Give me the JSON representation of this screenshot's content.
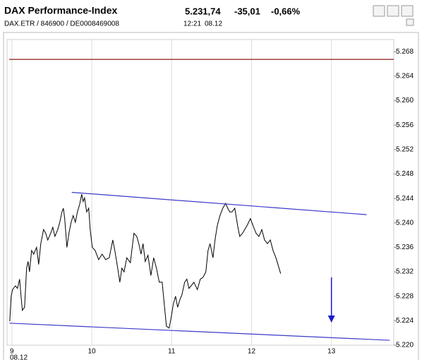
{
  "chart_data": {
    "type": "line",
    "title": "DAX Performance-Index",
    "identifiers": "DAX.ETR / 846900 / DE0008469008",
    "time": "12:21",
    "date": "08.12",
    "quote": {
      "price": {
        "value": 5231.74,
        "label": "5.231,74"
      },
      "change": {
        "value": -35.01,
        "label": "-35,01"
      },
      "change_pct": {
        "value": -0.66,
        "label": "-0,66%"
      }
    },
    "x": [
      8.974,
      8.991,
      9.009,
      9.044,
      9.071,
      9.097,
      9.115,
      9.132,
      9.159,
      9.185,
      9.203,
      9.221,
      9.247,
      9.274,
      9.309,
      9.336,
      9.362,
      9.397,
      9.424,
      9.45,
      9.486,
      9.512,
      9.539,
      9.574,
      9.6,
      9.627,
      9.645,
      9.662,
      9.689,
      9.715,
      9.742,
      9.768,
      9.795,
      9.821,
      9.848,
      9.874,
      9.892,
      9.91,
      9.936,
      9.962,
      9.98,
      10.007,
      10.042,
      10.086,
      10.13,
      10.174,
      10.219,
      10.263,
      10.289,
      10.325,
      10.351,
      10.377,
      10.404,
      10.439,
      10.483,
      10.528,
      10.563,
      10.589,
      10.616,
      10.642,
      10.669,
      10.704,
      10.74,
      10.775,
      10.81,
      10.845,
      10.881,
      10.907,
      10.934,
      10.969,
      10.996,
      11.022,
      11.049,
      11.075,
      11.102,
      11.128,
      11.163,
      11.19,
      11.216,
      11.243,
      11.278,
      11.322,
      11.358,
      11.393,
      11.428,
      11.455,
      11.481,
      11.517,
      11.543,
      11.57,
      11.605,
      11.64,
      11.675,
      11.702,
      11.728,
      11.755,
      11.79,
      11.826,
      11.852,
      11.887,
      11.914,
      11.949,
      11.985,
      12.02,
      12.057,
      12.092,
      12.128,
      12.163,
      12.199,
      12.234,
      12.269,
      12.305,
      12.331,
      12.364
    ],
    "series": [
      {
        "color": "#000000",
        "values": [
          5223.9,
          5228.0,
          5229.1,
          5229.7,
          5229.3,
          5230.8,
          5228.0,
          5225.7,
          5226.2,
          5232.6,
          5233.7,
          5232.0,
          5235.5,
          5234.9,
          5236.0,
          5233.2,
          5236.6,
          5238.9,
          5238.3,
          5237.2,
          5238.3,
          5239.3,
          5237.8,
          5238.9,
          5240.1,
          5241.8,
          5242.4,
          5240.7,
          5236.0,
          5238.3,
          5240.1,
          5241.2,
          5240.1,
          5241.8,
          5243.0,
          5244.7,
          5243.5,
          5244.1,
          5241.8,
          5242.4,
          5238.9,
          5236.0,
          5235.5,
          5234.0,
          5234.9,
          5234.0,
          5234.3,
          5237.2,
          5235.5,
          5232.6,
          5230.3,
          5232.6,
          5232.0,
          5234.3,
          5233.5,
          5238.3,
          5237.8,
          5236.6,
          5234.9,
          5236.6,
          5233.7,
          5234.7,
          5231.4,
          5234.3,
          5232.6,
          5230.3,
          5230.3,
          5226.8,
          5223.1,
          5222.8,
          5224.7,
          5226.8,
          5228.0,
          5226.2,
          5227.4,
          5228.2,
          5230.3,
          5230.8,
          5229.3,
          5229.7,
          5230.3,
          5229.1,
          5230.8,
          5231.1,
          5232.0,
          5235.5,
          5236.6,
          5234.3,
          5237.2,
          5239.5,
          5241.2,
          5242.4,
          5243.2,
          5242.4,
          5241.8,
          5241.8,
          5242.4,
          5239.5,
          5237.8,
          5238.3,
          5238.9,
          5239.7,
          5240.7,
          5239.5,
          5238.3,
          5237.8,
          5238.9,
          5237.2,
          5236.6,
          5237.2,
          5235.5,
          5234.3,
          5233.2,
          5231.7
        ]
      }
    ],
    "xlim": [
      8.94,
      13.78
    ],
    "xticks": [
      9,
      10,
      11,
      12,
      13
    ],
    "ylim": [
      5220,
      5270
    ],
    "yticks": [
      {
        "value": 5220,
        "label": "5.220"
      },
      {
        "value": 5224,
        "label": "5.224"
      },
      {
        "value": 5228,
        "label": "5.228"
      },
      {
        "value": 5232,
        "label": "5.232"
      },
      {
        "value": 5236,
        "label": "5.236"
      },
      {
        "value": 5240,
        "label": "5.240"
      },
      {
        "value": 5244,
        "label": "5.244"
      },
      {
        "value": 5248,
        "label": "5.248"
      },
      {
        "value": 5252,
        "label": "5.252"
      },
      {
        "value": 5256,
        "label": "5.256"
      },
      {
        "value": 5260,
        "label": "5.260"
      },
      {
        "value": 5264,
        "label": "5.264"
      },
      {
        "value": 5268,
        "label": "5.268"
      }
    ],
    "grid": true,
    "reference_lines": [
      {
        "value": 5266.75,
        "color": "#8b1a1a"
      }
    ],
    "trend_lines": [
      {
        "color": "#3a3ac8",
        "x": [
          9.75,
          13.44
        ],
        "y": [
          5245.0,
          5241.35
        ]
      },
      {
        "color": "#3a3ac8",
        "x": [
          8.97,
          13.73
        ],
        "y": [
          5223.6,
          5220.8
        ]
      }
    ],
    "arrow": {
      "color": "#1a1acc",
      "x": 13,
      "y": [
        5231.1,
        5223.7
      ]
    }
  }
}
